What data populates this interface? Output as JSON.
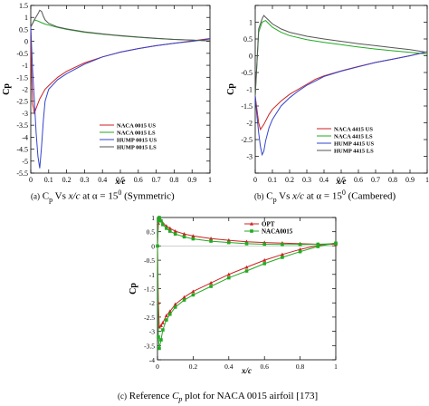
{
  "captions": {
    "a_prefix": "(a)",
    "a_text": " C",
    "a_sub": "p",
    "a_mid": " Vs ",
    "a_var": "x/c",
    "a_mid2": " at α = 15",
    "a_sup": "0",
    "a_end": " (Symmetric)",
    "b_prefix": "(b)",
    "b_text": " C",
    "b_sub": "p",
    "b_mid": " Vs ",
    "b_var": "x/c",
    "b_mid2": " at α = 15",
    "b_sup": "0",
    "b_end": " (Cambered)",
    "c_prefix": "(c)",
    "c_text": " Reference ",
    "c_var": "C",
    "c_sub": "p",
    "c_end": " plot for NACA 0015 airfoil [173]"
  },
  "chart_data": [
    {
      "id": "a",
      "type": "line",
      "xlabel": "x/c",
      "ylabel": "Cp",
      "xlim": [
        0,
        1
      ],
      "ylim": [
        -5.5,
        1.5
      ],
      "x_ticks": [
        0,
        0.1,
        0.2,
        0.3,
        0.4,
        0.5,
        0.6,
        0.7,
        0.8,
        0.9,
        1
      ],
      "x_tick_labels": [
        "0",
        "0.1",
        "0.2",
        "0.3",
        "0.4",
        "0.5",
        "0.6",
        "0.7",
        "0.8",
        "0.9",
        "1"
      ],
      "y_ticks": [
        1.5,
        1,
        0.5,
        0,
        -0.5,
        -1,
        -1.5,
        -2,
        -2.5,
        -3,
        -3.5,
        -4,
        -4.5,
        -5,
        -5.5
      ],
      "y_tick_labels": [
        "1.5",
        "1",
        "0.5",
        "0",
        "-0.5",
        "-1",
        "-1.5",
        "-2",
        "-2.5",
        "-3",
        "-3.5",
        "-4",
        "-4.5",
        "-5",
        "-5.5"
      ],
      "legend_position": "lower-right",
      "series": [
        {
          "name": "NACA 0015 US",
          "color": "#cc2222",
          "x": [
            0,
            0.005,
            0.01,
            0.02,
            0.03,
            0.05,
            0.08,
            0.1,
            0.15,
            0.2,
            0.3,
            0.4,
            0.5,
            0.6,
            0.7,
            0.8,
            0.9,
            1.0
          ],
          "y": [
            0.6,
            -1.5,
            -2.6,
            -3.0,
            -2.8,
            -2.4,
            -2.0,
            -1.85,
            -1.5,
            -1.25,
            -0.9,
            -0.65,
            -0.45,
            -0.3,
            -0.18,
            -0.08,
            0.02,
            0.12
          ]
        },
        {
          "name": "NACA 0015 LS",
          "color": "#22aa22",
          "x": [
            0,
            0.02,
            0.04,
            0.06,
            0.08,
            0.1,
            0.15,
            0.2,
            0.3,
            0.4,
            0.5,
            0.6,
            0.7,
            0.8,
            0.9,
            1.0
          ],
          "y": [
            0.6,
            0.9,
            0.85,
            0.78,
            0.72,
            0.68,
            0.58,
            0.5,
            0.38,
            0.3,
            0.23,
            0.17,
            0.12,
            0.08,
            0.05,
            0.02
          ]
        },
        {
          "name": "HUMP 0015 US",
          "color": "#3344cc",
          "x": [
            0,
            0.01,
            0.02,
            0.03,
            0.04,
            0.05,
            0.06,
            0.07,
            0.08,
            0.1,
            0.15,
            0.2,
            0.3,
            0.4,
            0.5,
            0.6,
            0.7,
            0.8,
            0.9,
            1.0
          ],
          "y": [
            0.6,
            -1.2,
            -2.5,
            -3.8,
            -4.8,
            -5.3,
            -4.4,
            -3.3,
            -2.5,
            -2.0,
            -1.6,
            -1.35,
            -0.95,
            -0.65,
            -0.45,
            -0.3,
            -0.18,
            -0.08,
            0.0,
            0.1
          ]
        },
        {
          "name": "HUMP 0015 LS",
          "color": "#555555",
          "x": [
            0,
            0.02,
            0.04,
            0.05,
            0.06,
            0.07,
            0.08,
            0.1,
            0.15,
            0.2,
            0.3,
            0.4,
            0.5,
            0.6,
            0.7,
            0.8,
            0.9,
            1.0
          ],
          "y": [
            0.6,
            0.9,
            1.15,
            1.3,
            1.25,
            1.05,
            0.9,
            0.75,
            0.6,
            0.52,
            0.4,
            0.31,
            0.24,
            0.18,
            0.13,
            0.08,
            0.05,
            0.02
          ]
        }
      ]
    },
    {
      "id": "b",
      "type": "line",
      "xlabel": "x/c",
      "ylabel": "Cp",
      "xlim": [
        0,
        1
      ],
      "ylim": [
        -3.5,
        1.5
      ],
      "x_ticks": [
        0,
        0.1,
        0.2,
        0.3,
        0.4,
        0.5,
        0.6,
        0.7,
        0.8,
        0.9,
        1
      ],
      "x_tick_labels": [
        "0",
        "0.1",
        "0.2",
        "0.3",
        "0.4",
        "0.5",
        "0.6",
        "0.7",
        "0.8",
        "0.9",
        "1"
      ],
      "y_ticks": [
        1.5,
        1,
        0.5,
        0,
        -0.5,
        -1,
        -1.5,
        -2,
        -2.5,
        -3,
        -3.5
      ],
      "y_tick_labels": [
        "",
        "1",
        "0.5",
        "0",
        "-0.5",
        "-1",
        "-1.5",
        "-2",
        "-2.5",
        "-3",
        ""
      ],
      "legend_position": "lower-right",
      "series": [
        {
          "name": "NACA 4415 US",
          "color": "#cc2222",
          "x": [
            0,
            0.01,
            0.02,
            0.03,
            0.05,
            0.08,
            0.1,
            0.15,
            0.2,
            0.25,
            0.3,
            0.35,
            0.4,
            0.5,
            0.6,
            0.7,
            0.8,
            0.9,
            1.0
          ],
          "y": [
            -1.2,
            -1.6,
            -2.0,
            -2.2,
            -2.05,
            -1.75,
            -1.6,
            -1.35,
            -1.15,
            -1.0,
            -0.85,
            -0.7,
            -0.6,
            -0.45,
            -0.32,
            -0.2,
            -0.1,
            0.0,
            0.12
          ]
        },
        {
          "name": "NACA 4415 LS",
          "color": "#22aa22",
          "x": [
            0,
            0.02,
            0.04,
            0.06,
            0.08,
            0.1,
            0.15,
            0.2,
            0.3,
            0.4,
            0.5,
            0.6,
            0.7,
            0.8,
            0.9,
            1.0
          ],
          "y": [
            -1.2,
            0.7,
            1.0,
            1.05,
            0.95,
            0.85,
            0.7,
            0.6,
            0.48,
            0.4,
            0.33,
            0.26,
            0.2,
            0.15,
            0.1,
            0.05
          ]
        },
        {
          "name": "HUMP 4415 US",
          "color": "#3344cc",
          "x": [
            0,
            0.01,
            0.02,
            0.03,
            0.04,
            0.05,
            0.06,
            0.08,
            0.1,
            0.15,
            0.2,
            0.25,
            0.3,
            0.35,
            0.4,
            0.5,
            0.6,
            0.7,
            0.8,
            0.9,
            1.0
          ],
          "y": [
            -1.2,
            -1.8,
            -2.3,
            -2.7,
            -2.95,
            -2.85,
            -2.55,
            -2.15,
            -1.9,
            -1.5,
            -1.25,
            -1.05,
            -0.88,
            -0.75,
            -0.62,
            -0.46,
            -0.33,
            -0.2,
            -0.1,
            0.0,
            0.12
          ]
        },
        {
          "name": "HUMP 4415 LS",
          "color": "#555555",
          "x": [
            0,
            0.02,
            0.04,
            0.05,
            0.06,
            0.08,
            0.1,
            0.15,
            0.2,
            0.3,
            0.4,
            0.5,
            0.6,
            0.7,
            0.8,
            0.9,
            1.0
          ],
          "y": [
            -1.2,
            0.8,
            1.1,
            1.2,
            1.15,
            1.05,
            0.95,
            0.8,
            0.7,
            0.58,
            0.5,
            0.43,
            0.36,
            0.3,
            0.24,
            0.18,
            0.1
          ]
        }
      ]
    },
    {
      "id": "c",
      "type": "line",
      "xlabel": "x/c",
      "ylabel": "Cp",
      "xlim": [
        0,
        1
      ],
      "ylim": [
        -4,
        1
      ],
      "x_ticks": [
        0,
        0.2,
        0.4,
        0.6,
        0.8,
        1
      ],
      "x_tick_labels": [
        "0",
        "0.2",
        "0.4",
        "0.6",
        "0.8",
        "1"
      ],
      "y_ticks": [
        1,
        0.5,
        0,
        -0.5,
        -1,
        -1.5,
        -2,
        -2.5,
        -3,
        -3.5,
        -4
      ],
      "y_tick_labels": [
        "1",
        "0.5",
        "0",
        "-0.5",
        "-1",
        "-1.5",
        "-2",
        "-2.5",
        "-3",
        "-3.5",
        "-4"
      ],
      "legend_position": "top-right",
      "series": [
        {
          "name": "OPT",
          "color": "#cc2222",
          "marker": "triangle",
          "x": [
            1.0,
            0.9,
            0.8,
            0.7,
            0.6,
            0.5,
            0.4,
            0.3,
            0.2,
            0.15,
            0.1,
            0.07,
            0.05,
            0.03,
            0.02,
            0.01,
            0.005,
            0.0,
            0.005,
            0.01,
            0.02,
            0.03,
            0.05,
            0.07,
            0.1,
            0.15,
            0.2,
            0.3,
            0.4,
            0.5,
            0.6,
            0.7,
            0.8,
            0.9,
            1.0
          ],
          "y": [
            0.1,
            0.02,
            -0.12,
            -0.3,
            -0.5,
            -0.75,
            -1.0,
            -1.3,
            -1.6,
            -1.8,
            -2.05,
            -2.3,
            -2.45,
            -2.7,
            -2.8,
            -2.85,
            -2.0,
            0.0,
            0.8,
            1.0,
            0.9,
            0.8,
            0.7,
            0.62,
            0.52,
            0.42,
            0.35,
            0.26,
            0.2,
            0.15,
            0.12,
            0.1,
            0.08,
            0.06,
            0.05
          ]
        },
        {
          "name": "NACA0015",
          "color": "#22aa22",
          "marker": "square",
          "x": [
            1.0,
            0.9,
            0.8,
            0.7,
            0.6,
            0.5,
            0.4,
            0.3,
            0.2,
            0.15,
            0.1,
            0.07,
            0.05,
            0.03,
            0.02,
            0.01,
            0.005,
            0.0,
            0.005,
            0.01,
            0.02,
            0.03,
            0.05,
            0.07,
            0.1,
            0.15,
            0.2,
            0.3,
            0.4,
            0.5,
            0.6,
            0.7,
            0.8,
            0.9,
            1.0
          ],
          "y": [
            0.1,
            -0.02,
            -0.2,
            -0.4,
            -0.62,
            -0.88,
            -1.12,
            -1.42,
            -1.72,
            -1.9,
            -2.15,
            -2.4,
            -2.6,
            -2.95,
            -3.3,
            -3.6,
            -3.2,
            0.0,
            0.9,
            1.0,
            0.88,
            0.75,
            0.62,
            0.52,
            0.42,
            0.32,
            0.25,
            0.17,
            0.12,
            0.08,
            0.06,
            0.05,
            0.05,
            0.06,
            0.08
          ]
        }
      ]
    }
  ]
}
